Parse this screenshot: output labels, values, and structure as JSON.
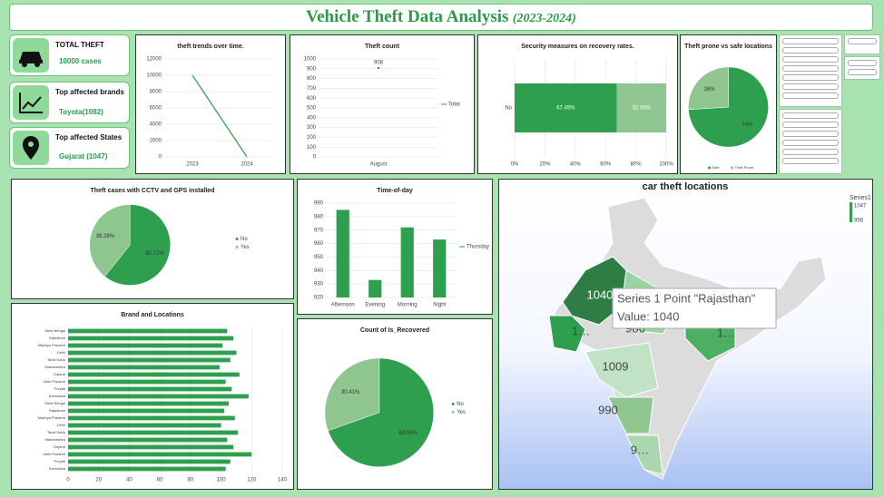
{
  "header": {
    "title": "Vehicle Theft Data Analysis",
    "subtitle": "(2023-2024)"
  },
  "kpis": [
    {
      "label": "TOTAL THEFT",
      "value": "10000 cases"
    },
    {
      "label": "Top affected brands",
      "value": "Toyota(1082)"
    },
    {
      "label": "Top affected States",
      "value": "Gujarat (1047)"
    }
  ],
  "chart_data": [
    {
      "type": "line",
      "title": "theft trends over time.",
      "categories": [
        "2023",
        "2024"
      ],
      "series": [
        {
          "name": null,
          "color": "#2e9e4f",
          "values": [
            10000,
            0
          ]
        }
      ],
      "ylim": [
        0,
        12000
      ],
      "yticks": [
        0,
        2000,
        4000,
        6000,
        8000,
        10000,
        12000
      ],
      "grid": true
    },
    {
      "type": "line",
      "title": "Theft count",
      "categories": [
        "August"
      ],
      "series": [
        {
          "name": "Total",
          "color": "#2e9e4f",
          "values": [
            908
          ]
        }
      ],
      "ylim": [
        0,
        1000
      ],
      "yticks": [
        0,
        100,
        200,
        300,
        400,
        500,
        600,
        700,
        800,
        900,
        1000
      ],
      "grid": true,
      "data_labels": true
    },
    {
      "type": "bar",
      "orientation": "horizontal",
      "stacked": true,
      "title": "Security measures on recovery rates.",
      "categories": [
        "No"
      ],
      "series": [
        {
          "name": null,
          "color": "#2e9e4f",
          "values": [
            67.45
          ],
          "value_labels": [
            "67.45%"
          ]
        },
        {
          "name": null,
          "color": "#8fc58f",
          "values": [
            32.55
          ],
          "value_labels": [
            "32.55%"
          ]
        }
      ],
      "xlim": [
        0,
        100
      ],
      "xticks": [
        {
          "value": 0,
          "label": "0%"
        },
        {
          "value": 20,
          "label": "20%"
        },
        {
          "value": 40,
          "label": "40%"
        },
        {
          "value": 60,
          "label": "60%"
        },
        {
          "value": 80,
          "label": "80%"
        },
        {
          "value": 100,
          "label": "100%"
        }
      ],
      "grid": true
    },
    {
      "type": "pie",
      "title": "Theft prone vs safe locations",
      "categories": [
        "Safe",
        "Theft Prone"
      ],
      "values": [
        74,
        26
      ],
      "value_labels": [
        "74%",
        "26%"
      ],
      "colors": [
        "#2e9e4f",
        "#8fc58f"
      ],
      "legend": "bottom"
    },
    {
      "type": "pie",
      "title": "Theft cases with CCTV and GPS installed",
      "categories": [
        "No",
        "Yes"
      ],
      "values": [
        60.72,
        39.28
      ],
      "value_labels": [
        "60.72%",
        "39.28%"
      ],
      "colors": [
        "#2e9e4f",
        "#8fc58f"
      ],
      "legend": "right"
    },
    {
      "type": "bar",
      "title": "Time-of-day",
      "categories": [
        "Afternoon",
        "Evening",
        "Morning",
        "Night"
      ],
      "series": [
        {
          "name": "Thursday",
          "color": "#2e9e4f",
          "values": [
            985,
            933,
            972,
            963
          ]
        }
      ],
      "ylim": [
        920,
        990
      ],
      "yticks": [
        920,
        930,
        940,
        950,
        960,
        970,
        980,
        990
      ],
      "grid": true
    },
    {
      "type": "bar",
      "orientation": "horizontal",
      "title": "Brand and Locations",
      "categories": [
        "West Bengal",
        "Rajasthan",
        "Madhya Pradesh",
        "Delhi",
        "Tamil Nadu",
        "Maharashtra",
        "Gujarat",
        "Uttar Pradesh",
        "Punjab",
        "Karnataka",
        "West Bengal",
        "Rajasthan",
        "Madhya Pradesh",
        "Delhi",
        "Tamil Nadu",
        "Maharashtra",
        "Gujarat",
        "Uttar Pradesh",
        "Punjab",
        "Karnataka"
      ],
      "series": [
        {
          "name": null,
          "color": "#2e9e4f",
          "values": [
            104,
            108,
            101,
            110,
            106,
            99,
            112,
            103,
            107,
            118,
            105,
            102,
            109,
            100,
            111,
            104,
            108,
            120,
            106,
            103
          ]
        }
      ],
      "xlim": [
        0,
        140
      ],
      "xticks": [
        0,
        20,
        40,
        60,
        80,
        100,
        120,
        140
      ],
      "grid": true
    },
    {
      "type": "pie",
      "title": "Count of Is_Recovered",
      "categories": [
        "No",
        "Yes"
      ],
      "values": [
        69.59,
        30.41
      ],
      "value_labels": [
        "69.59%",
        "30.41%"
      ],
      "colors": [
        "#2e9e4f",
        "#8fc58f"
      ],
      "legend": "right"
    }
  ],
  "map": {
    "title": "car theft locations",
    "labels": [
      "1040",
      "958",
      "986",
      "1…",
      "1…",
      "1009",
      "990",
      "9…"
    ],
    "tooltip": [
      "Series 1 Point \"Rajasthan\"",
      "Value: 1040"
    ],
    "legend": {
      "title": "Series1",
      "max": "1047",
      "min": "958"
    }
  }
}
